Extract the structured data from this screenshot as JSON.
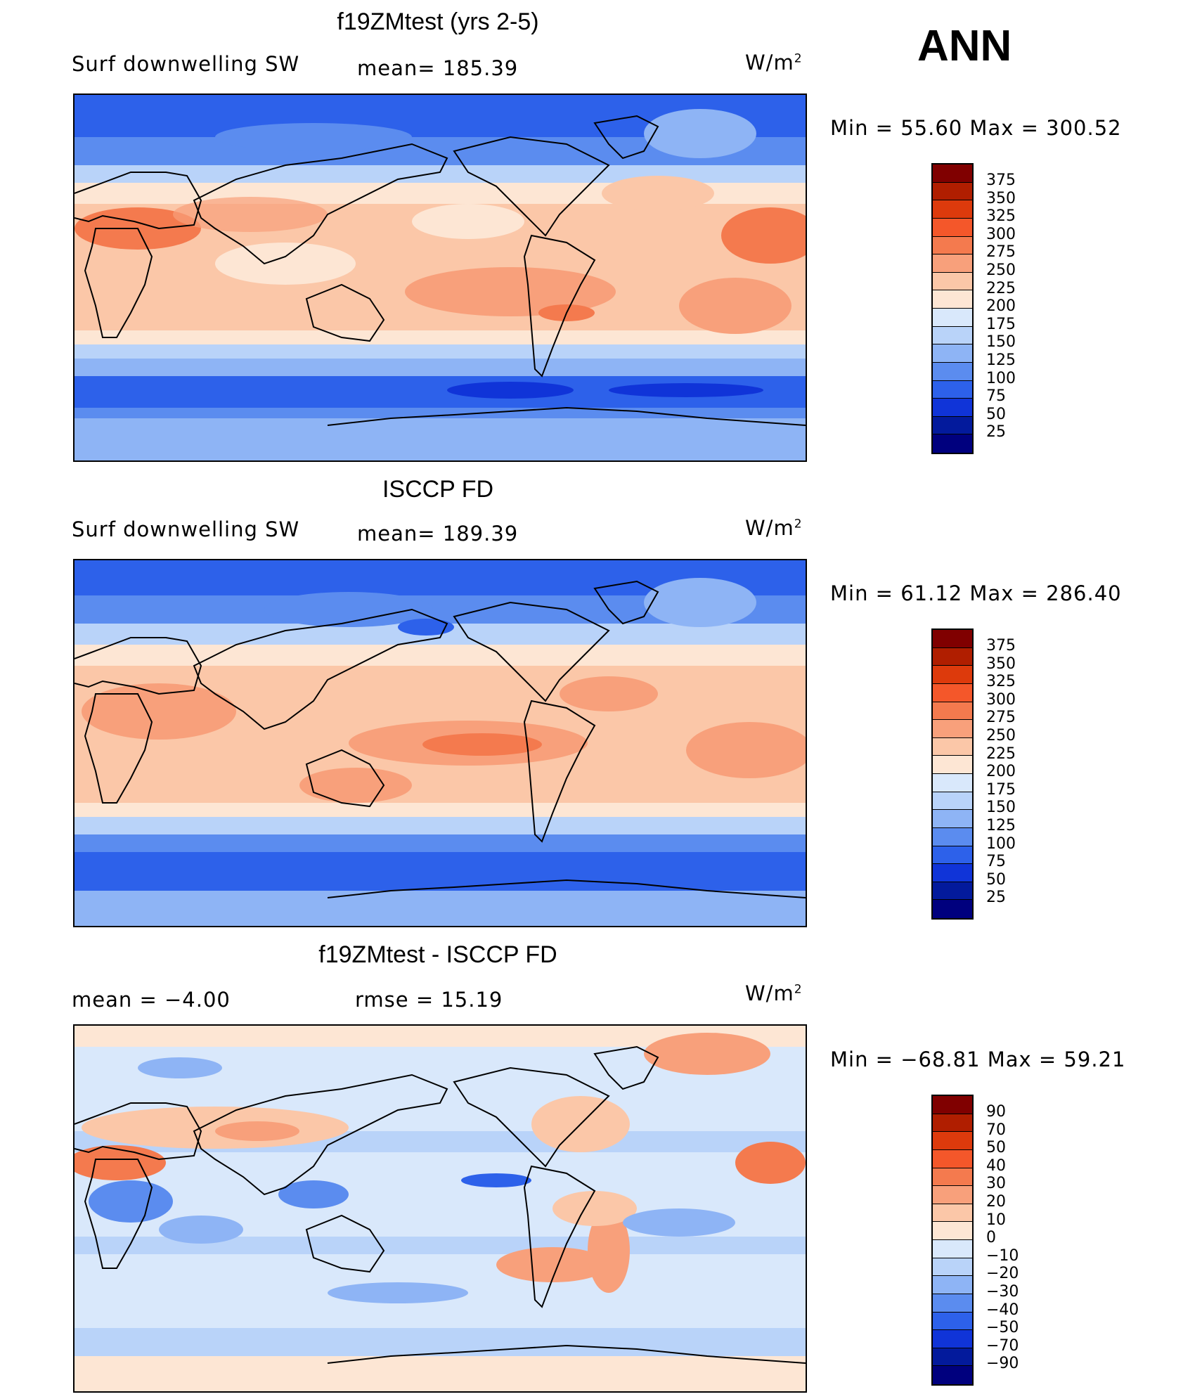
{
  "season": "ANN",
  "unit_prefix": "W/m",
  "unit_exp": "2",
  "panels": [
    {
      "title": "f19ZMtest (yrs 2-5)",
      "left_label": "Surf  downwelling  SW",
      "center_label": "mean=  185.39",
      "minmax": "Min  =    55.60  Max  =  300.52",
      "ticks": [
        "375",
        "350",
        "325",
        "300",
        "275",
        "250",
        "225",
        "200",
        "175",
        "150",
        "125",
        "100",
        "75",
        "50",
        "25"
      ]
    },
    {
      "title": "ISCCP FD",
      "left_label": "Surf  downwelling  SW",
      "center_label": "mean=  189.39",
      "minmax": "Min  =    61.12  Max  =  286.40",
      "ticks": [
        "375",
        "350",
        "325",
        "300",
        "275",
        "250",
        "225",
        "200",
        "175",
        "150",
        "125",
        "100",
        "75",
        "50",
        "25"
      ]
    },
    {
      "title": "f19ZMtest - ISCCP FD",
      "left_label": "mean  =    −4.00",
      "center_label": "rmse  =    15.19",
      "minmax": "Min  =  −68.81  Max  =    59.21",
      "ticks": [
        "90",
        "70",
        "50",
        "40",
        "30",
        "20",
        "10",
        "0",
        "−10",
        "−20",
        "−30",
        "−40",
        "−50",
        "−70",
        "−90"
      ]
    }
  ],
  "colors": {
    "abs_scale": [
      "#800000",
      "#b01e00",
      "#dd3a0c",
      "#f4572a",
      "#f47a4e",
      "#f8a07b",
      "#fbc7a8",
      "#fde6d4",
      "#d9e8fb",
      "#b9d3f9",
      "#8eb4f5",
      "#5b8cef",
      "#2d61ea",
      "#1034d8",
      "#031a9c",
      "#00007e"
    ],
    "diff_scale": [
      "#800000",
      "#b01e00",
      "#dd3a0c",
      "#f4572a",
      "#f47a4e",
      "#f8a07b",
      "#fbc7a8",
      "#fde6d4",
      "#d9e8fb",
      "#b9d3f9",
      "#8eb4f5",
      "#5b8cef",
      "#2d61ea",
      "#1034d8",
      "#031a9c",
      "#00007e"
    ]
  }
}
